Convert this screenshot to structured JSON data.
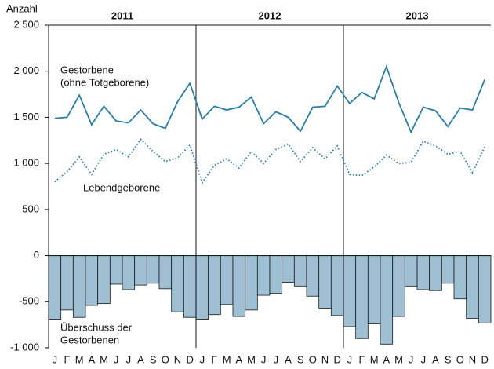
{
  "chart_data": {
    "type": "combo",
    "y_label": "Anzahl",
    "years": [
      "2011",
      "2012",
      "2013"
    ],
    "categories": [
      "J",
      "F",
      "M",
      "A",
      "M",
      "J",
      "J",
      "A",
      "S",
      "O",
      "N",
      "D",
      "J",
      "F",
      "M",
      "A",
      "M",
      "J",
      "J",
      "A",
      "S",
      "O",
      "N",
      "D",
      "J",
      "F",
      "M",
      "A",
      "M",
      "J",
      "J",
      "A",
      "S",
      "O",
      "N",
      "D"
    ],
    "ylim": [
      -1000,
      2500
    ],
    "yticks": [
      {
        "value": 2500,
        "label": "2 500"
      },
      {
        "value": 2000,
        "label": "2 000"
      },
      {
        "value": 1500,
        "label": "1 500"
      },
      {
        "value": 1000,
        "label": "1 000"
      },
      500,
      0,
      -500,
      {
        "value": -1000,
        "label": "-1 000"
      }
    ],
    "series": [
      {
        "name": [
          "Gestorbene",
          "(ohne Totgeborene)"
        ],
        "type": "line",
        "style": "solid",
        "color": "#2b7da3",
        "values": [
          1490,
          1500,
          1740,
          1420,
          1620,
          1460,
          1440,
          1580,
          1430,
          1380,
          1670,
          1870,
          1480,
          1620,
          1580,
          1610,
          1720,
          1430,
          1560,
          1500,
          1350,
          1610,
          1620,
          1840,
          1650,
          1770,
          1700,
          2050,
          1660,
          1340,
          1610,
          1570,
          1400,
          1600,
          1580,
          1910
        ]
      },
      {
        "name": [
          "Lebendgeborene"
        ],
        "type": "line",
        "style": "dotted",
        "color": "#2b7da3",
        "values": [
          800,
          910,
          1070,
          880,
          1100,
          1150,
          1070,
          1260,
          1130,
          1020,
          1060,
          1200,
          790,
          980,
          1050,
          950,
          1130,
          1000,
          1150,
          1210,
          1020,
          1170,
          1050,
          1190,
          880,
          870,
          960,
          1090,
          1000,
          1010,
          1240,
          1190,
          1100,
          1130,
          900,
          1180
        ]
      },
      {
        "name": [
          "Überschuss der",
          "Gestorbenen"
        ],
        "type": "bar",
        "color": "#9fbfd2",
        "values": [
          -690,
          -590,
          -670,
          -540,
          -520,
          -310,
          -370,
          -320,
          -300,
          -360,
          -610,
          -670,
          -690,
          -640,
          -530,
          -660,
          -590,
          -430,
          -410,
          -290,
          -330,
          -440,
          -570,
          -650,
          -770,
          -900,
          -740,
          -960,
          -660,
          -330,
          -370,
          -380,
          -300,
          -470,
          -680,
          -730
        ]
      }
    ]
  }
}
